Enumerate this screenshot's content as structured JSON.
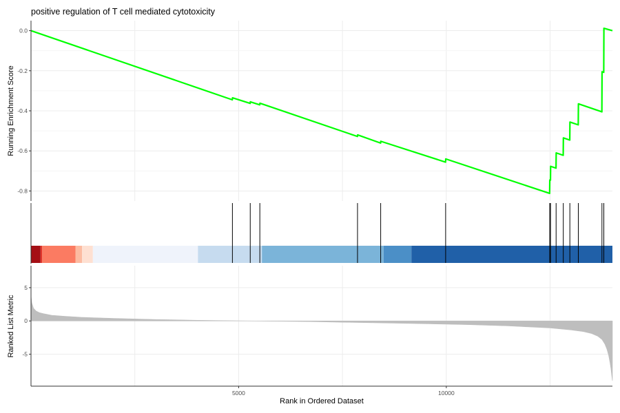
{
  "chart_data": {
    "type": "line",
    "title": "positive regulation of T cell mediated cytotoxicity",
    "xlabel": "Rank in Ordered Dataset",
    "xlim": [
      0,
      14000
    ],
    "x_ticks": [
      5000,
      10000
    ],
    "x_tick_labels": [
      "5000",
      "10000"
    ],
    "grid": true,
    "legend": "none",
    "panels": [
      {
        "name": "running-es",
        "ylabel": "Running Enrichment Score",
        "ylim": [
          -0.85,
          0.05
        ],
        "y_ticks": [
          0.0,
          -0.2,
          -0.4,
          -0.6,
          -0.8
        ],
        "y_tick_labels": [
          "0.0",
          "-0.2",
          "-0.4",
          "-0.6",
          "-0.8"
        ],
        "line_color": "#00ff00",
        "series": [
          {
            "x": [
              0,
              4848,
              4852,
              5277,
              5281,
              5508,
              5512,
              7860,
              7864,
              8418,
              8422,
              9982,
              9986,
              12488,
              12492,
              12508,
              12512,
              12642,
              12646,
              12815,
              12819,
              12973,
              12977,
              13177,
              13181,
              13746,
              13750,
              13791,
              13795,
              14000
            ],
            "y": [
              0.0,
              -0.345,
              -0.335,
              -0.363,
              -0.355,
              -0.37,
              -0.362,
              -0.528,
              -0.52,
              -0.561,
              -0.552,
              -0.656,
              -0.64,
              -0.812,
              -0.745,
              -0.746,
              -0.677,
              -0.686,
              -0.61,
              -0.622,
              -0.535,
              -0.546,
              -0.456,
              -0.47,
              -0.365,
              -0.405,
              -0.205,
              -0.208,
              0.012,
              0.0
            ]
          }
        ]
      },
      {
        "name": "gene-hits",
        "hits": [
          4850,
          5279,
          5510,
          7862,
          8420,
          9984,
          12490,
          12510,
          12644,
          12817,
          12975,
          13179,
          13748,
          13793
        ],
        "heat_bands": [
          {
            "x0": 0,
            "x1": 230,
            "color": "#a50f15"
          },
          {
            "x0": 230,
            "x1": 270,
            "color": "#e0352b"
          },
          {
            "x0": 270,
            "x1": 1070,
            "color": "#fb7b62"
          },
          {
            "x0": 1070,
            "x1": 1230,
            "color": "#fcbba1"
          },
          {
            "x0": 1230,
            "x1": 1490,
            "color": "#fee0d2"
          },
          {
            "x0": 1490,
            "x1": 4020,
            "color": "#eff3fb"
          },
          {
            "x0": 4020,
            "x1": 5560,
            "color": "#c6dbef"
          },
          {
            "x0": 5560,
            "x1": 8490,
            "color": "#7bb4d9"
          },
          {
            "x0": 8490,
            "x1": 9160,
            "color": "#4b8fc7"
          },
          {
            "x0": 9160,
            "x1": 14000,
            "color": "#2060a8"
          }
        ]
      },
      {
        "name": "ranked-metric",
        "ylabel": "Ranked List Metric",
        "ylim": [
          -9.8,
          8.3
        ],
        "y_ticks": [
          5,
          0,
          -5
        ],
        "y_tick_labels": [
          "5",
          "0",
          "-5"
        ],
        "fill_color": "#bebebe",
        "series": [
          {
            "x": [
              0,
              20,
              60,
              120,
              200,
              300,
              500,
              800,
              1200,
              2000,
              3000,
              4000,
              5000,
              6000,
              6730,
              7500,
              8500,
              9500,
              10500,
              11500,
              12000,
              12500,
              13000,
              13300,
              13500,
              13650,
              13750,
              13820,
              13870,
              13910,
              13940,
              13965,
              13985,
              14000
            ],
            "y": [
              3.8,
              2.7,
              1.9,
              1.5,
              1.25,
              1.1,
              0.85,
              0.7,
              0.55,
              0.38,
              0.22,
              0.1,
              0.02,
              -0.05,
              -0.1,
              -0.2,
              -0.3,
              -0.42,
              -0.55,
              -0.75,
              -0.9,
              -1.05,
              -1.35,
              -1.6,
              -1.9,
              -2.3,
              -2.8,
              -3.5,
              -4.3,
              -5.2,
              -6.2,
              -7.2,
              -8.3,
              -9.0
            ]
          }
        ]
      }
    ]
  }
}
